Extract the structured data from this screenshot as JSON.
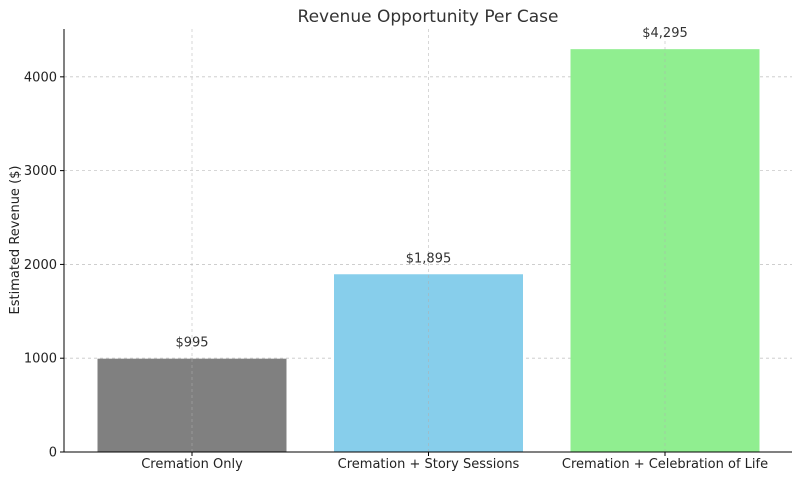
{
  "chart_data": {
    "type": "bar",
    "title": "Revenue Opportunity Per Case",
    "xlabel": "",
    "ylabel": "Estimated Revenue ($)",
    "categories": [
      "Cremation Only",
      "Cremation + Story Sessions",
      "Cremation + Celebration of Life"
    ],
    "values": [
      995,
      1895,
      4295
    ],
    "data_labels": [
      "$995",
      "$1,895",
      "$4,295"
    ],
    "bar_colors": [
      "#808080",
      "#87ceeb",
      "#90ee90"
    ],
    "ylim": [
      0,
      4510
    ],
    "yticks": [
      0,
      1000,
      2000,
      3000,
      4000
    ],
    "ytick_labels": [
      "0",
      "1000",
      "2000",
      "3000",
      "4000"
    ],
    "grid": true,
    "legend": "none"
  }
}
